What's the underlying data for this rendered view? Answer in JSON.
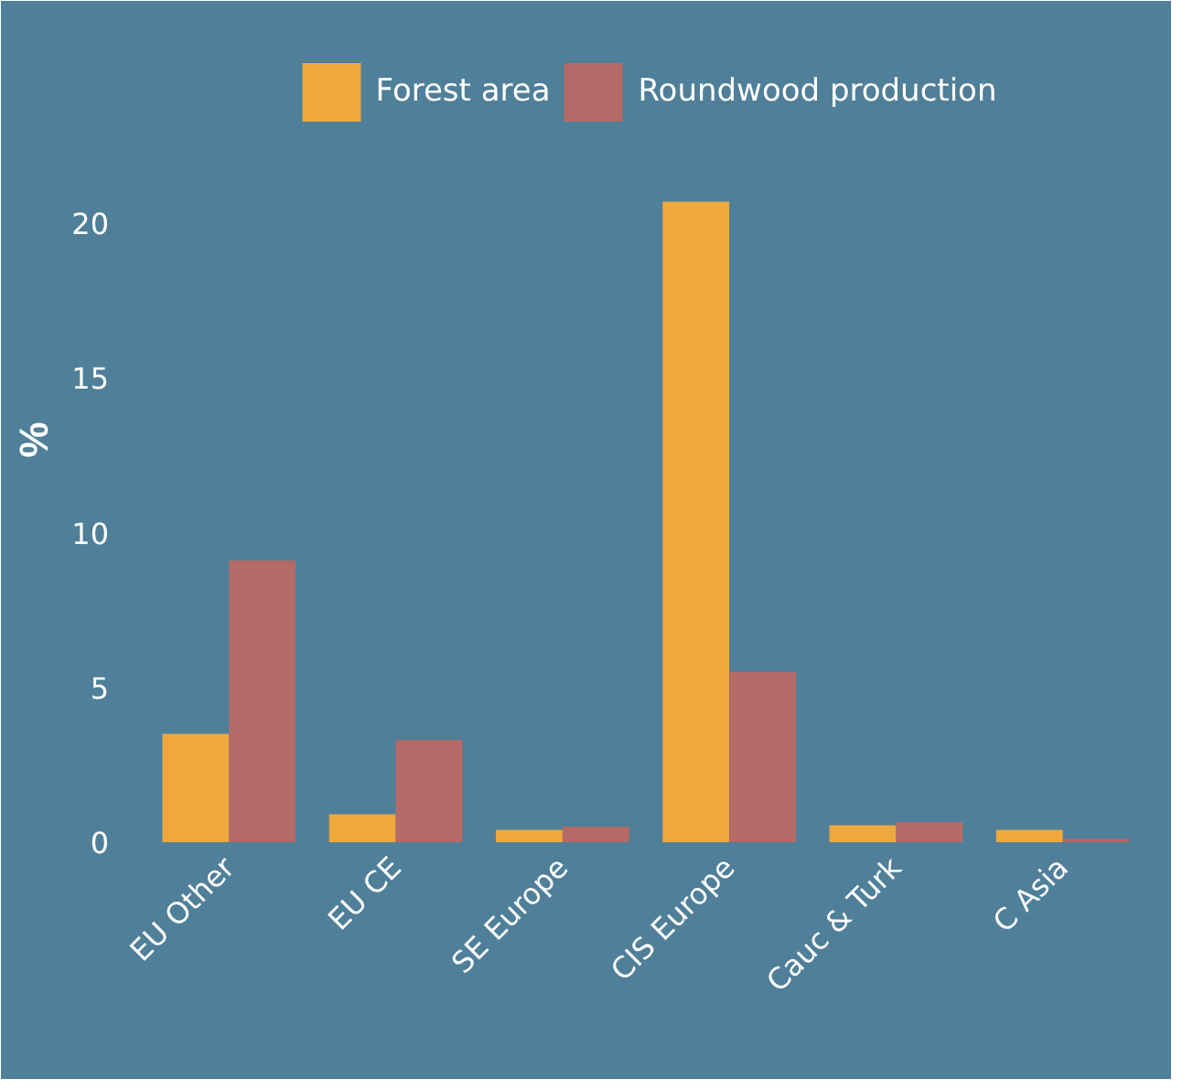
{
  "chart_data": {
    "type": "bar",
    "ylabel": "%",
    "categories": [
      "EU Other",
      "EU CE",
      "SE Europe",
      "CIS Europe",
      "Cauc & Turk",
      "C Asia"
    ],
    "series": [
      {
        "name": "Forest area",
        "color": "#eea83c",
        "values": [
          3.5,
          0.9,
          0.4,
          20.7,
          0.55,
          0.4
        ]
      },
      {
        "name": "Roundwood production",
        "color": "#b46a66",
        "values": [
          9.1,
          3.3,
          0.5,
          5.5,
          0.65,
          0.1
        ]
      }
    ],
    "ylim": [
      0,
      26
    ],
    "yticks": [
      0,
      5,
      10,
      15,
      20
    ],
    "grid": false,
    "legend": "top"
  }
}
